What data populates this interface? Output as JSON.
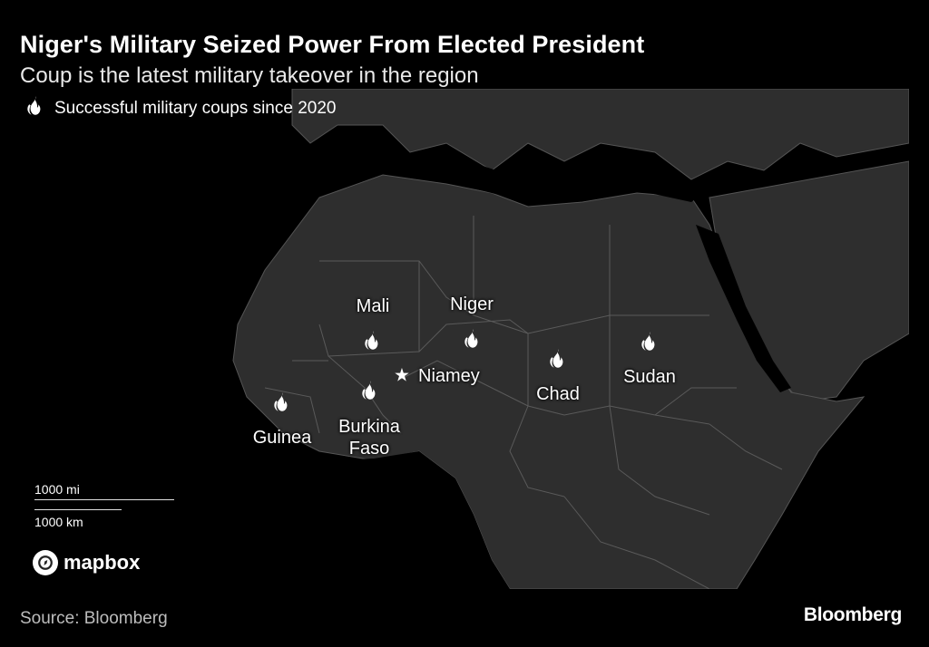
{
  "header": {
    "title": "Niger's Military Seized Power From Elected President",
    "subtitle": "Coup is the latest military takeover in the region"
  },
  "legend": {
    "label": "Successful military coups since 2020",
    "icon": "fire-icon"
  },
  "map": {
    "coup_countries": [
      "Mali",
      "Niger",
      "Burkina Faso",
      "Guinea",
      "Chad",
      "Sudan"
    ],
    "labels": {
      "mali": "Mali",
      "niger": "Niger",
      "burkina": "Burkina\nFaso",
      "guinea": "Guinea",
      "chad": "Chad",
      "sudan": "Sudan"
    },
    "capital": {
      "name": "Niamey",
      "marker": "star-icon"
    },
    "scale": {
      "miles": "1000 mi",
      "km": "1000 km"
    },
    "attribution": "mapbox"
  },
  "footer": {
    "source": "Source: Bloomberg",
    "brand": "Bloomberg"
  },
  "colors": {
    "background": "#000000",
    "land": "#2e2e2e",
    "water": "#000000",
    "borders": "#555555",
    "text": "#ffffff"
  }
}
